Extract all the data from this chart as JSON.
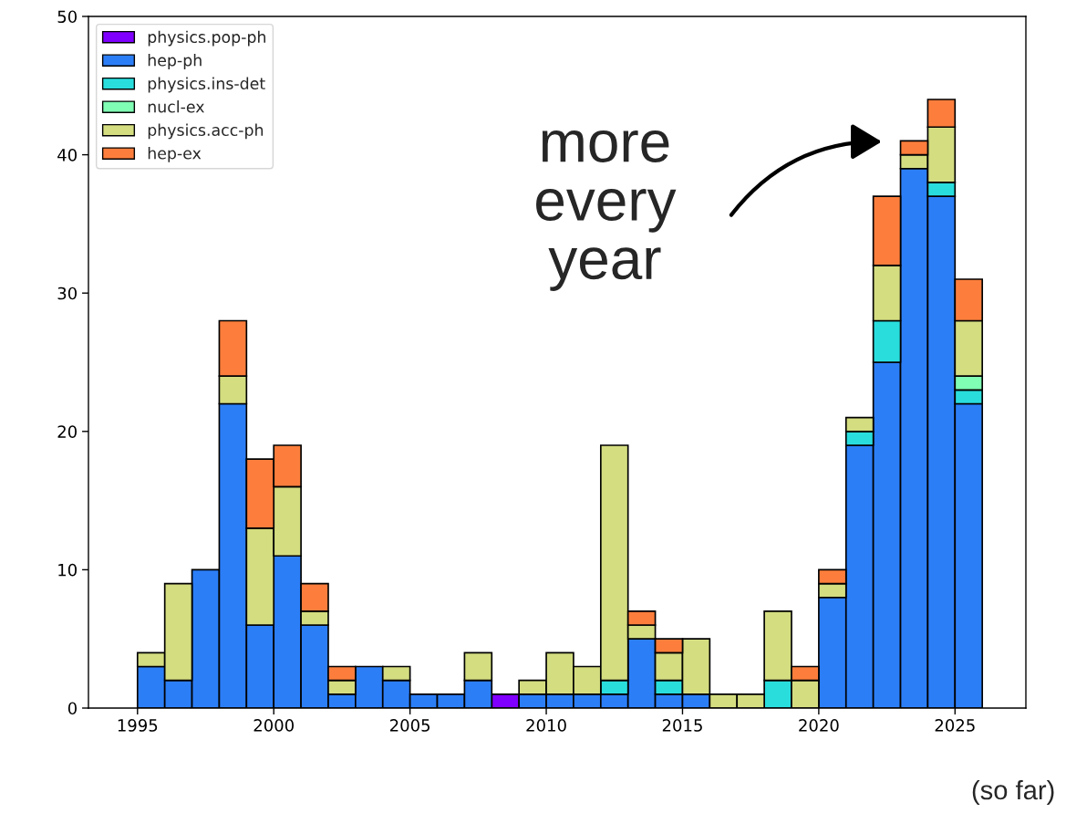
{
  "chart_data": {
    "type": "bar",
    "stacked": true,
    "x": [
      1995.5,
      1996.5,
      1997.5,
      1998.5,
      1999.5,
      2000.5,
      2001.5,
      2002.5,
      2003.5,
      2004.5,
      2005.5,
      2006.5,
      2007.5,
      2008.5,
      2009.5,
      2010.5,
      2011.5,
      2012.5,
      2013.5,
      2014.5,
      2015.5,
      2016.5,
      2017.5,
      2018.5,
      2019.5,
      2020.5,
      2021.5,
      2022.5,
      2023.5,
      2024.5,
      2025.5
    ],
    "series": [
      {
        "name": "physics.pop-ph",
        "color": "#8000ff",
        "values": [
          0,
          0,
          0,
          0,
          0,
          0,
          0,
          0,
          0,
          0,
          0,
          0,
          0,
          1,
          0,
          0,
          0,
          0,
          0,
          0,
          0,
          0,
          0,
          0,
          0,
          0,
          0,
          0,
          0,
          0,
          0
        ]
      },
      {
        "name": "hep-ph",
        "color": "#2c7ef7",
        "values": [
          3,
          2,
          10,
          22,
          6,
          11,
          6,
          1,
          3,
          2,
          1,
          1,
          2,
          0,
          1,
          1,
          1,
          1,
          5,
          1,
          1,
          0,
          0,
          0,
          0,
          8,
          19,
          25,
          39,
          37,
          22
        ]
      },
      {
        "name": "physics.ins-det",
        "color": "#2adddd",
        "values": [
          0,
          0,
          0,
          0,
          0,
          0,
          0,
          0,
          0,
          0,
          0,
          0,
          0,
          0,
          0,
          0,
          0,
          1,
          0,
          1,
          0,
          0,
          0,
          2,
          0,
          0,
          1,
          3,
          0,
          1,
          1
        ]
      },
      {
        "name": "nucl-ex",
        "color": "#80ffb4",
        "values": [
          0,
          0,
          0,
          0,
          0,
          0,
          0,
          0,
          0,
          0,
          0,
          0,
          0,
          0,
          0,
          0,
          0,
          0,
          0,
          0,
          0,
          0,
          0,
          0,
          0,
          0,
          0,
          0,
          0,
          0,
          1
        ]
      },
      {
        "name": "physics.acc-ph",
        "color": "#d4dd80",
        "values": [
          1,
          7,
          0,
          2,
          7,
          5,
          1,
          1,
          0,
          1,
          0,
          0,
          2,
          0,
          1,
          3,
          2,
          17,
          1,
          2,
          4,
          1,
          1,
          5,
          2,
          1,
          1,
          4,
          1,
          4,
          4
        ]
      },
      {
        "name": "hep-ex",
        "color": "#fd7e3c",
        "values": [
          0,
          0,
          0,
          4,
          5,
          3,
          2,
          1,
          0,
          0,
          0,
          0,
          0,
          0,
          0,
          0,
          0,
          0,
          1,
          1,
          0,
          0,
          0,
          0,
          1,
          1,
          0,
          5,
          1,
          2,
          3
        ]
      }
    ],
    "xlim": [
      1993.2,
      2027.6
    ],
    "xticks": [
      1995,
      2000,
      2005,
      2010,
      2015,
      2020,
      2025
    ],
    "ylim": [
      0,
      50
    ],
    "yticks": [
      0,
      10,
      20,
      30,
      40,
      50
    ],
    "grid": false,
    "legend": "top left",
    "annotations": [
      "more\nevery\nyear",
      "(so far)"
    ]
  }
}
